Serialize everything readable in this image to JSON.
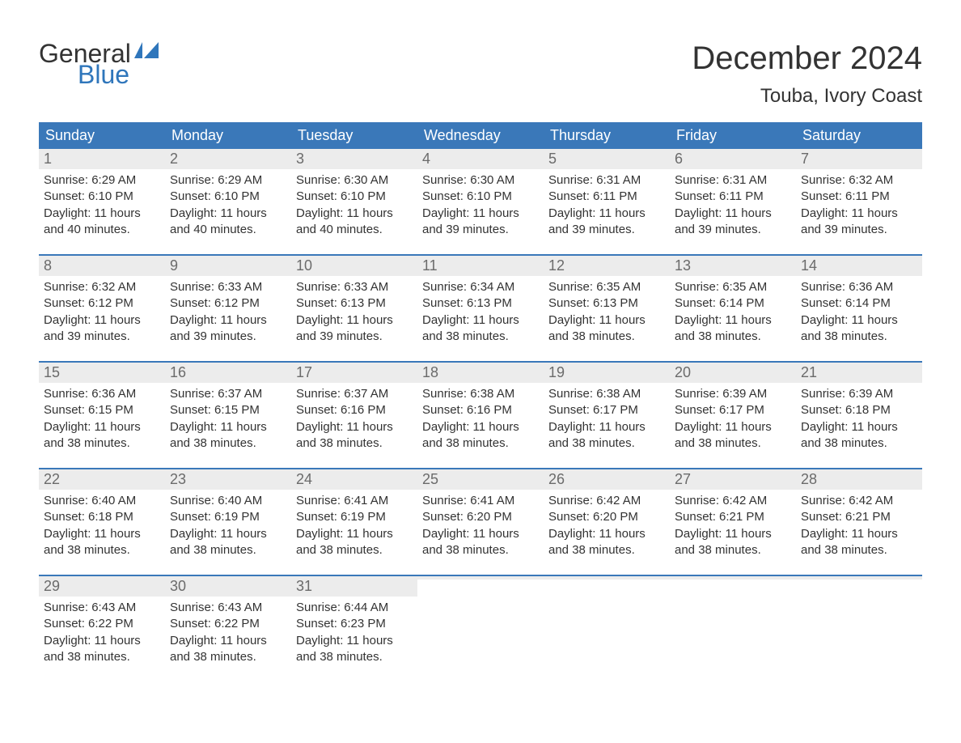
{
  "logo": {
    "text_general": "General",
    "text_blue": "Blue",
    "flag_color": "#2f76bb"
  },
  "title": "December 2024",
  "location": "Touba, Ivory Coast",
  "colors": {
    "header_bg": "#3a78b9",
    "header_text": "#ffffff",
    "daynum_bg": "#ececec",
    "daynum_text": "#6b6b6b",
    "body_text": "#333333",
    "week_divider": "#3a78b9",
    "page_bg": "#ffffff"
  },
  "typography": {
    "title_fontsize": 40,
    "location_fontsize": 24,
    "weekday_fontsize": 18,
    "daynum_fontsize": 18,
    "body_fontsize": 15
  },
  "weekdays": [
    "Sunday",
    "Monday",
    "Tuesday",
    "Wednesday",
    "Thursday",
    "Friday",
    "Saturday"
  ],
  "labels": {
    "sunrise": "Sunrise: ",
    "sunset": "Sunset: ",
    "daylight": "Daylight: "
  },
  "days": [
    {
      "n": 1,
      "sunrise": "6:29 AM",
      "sunset": "6:10 PM",
      "daylight": "11 hours and 40 minutes."
    },
    {
      "n": 2,
      "sunrise": "6:29 AM",
      "sunset": "6:10 PM",
      "daylight": "11 hours and 40 minutes."
    },
    {
      "n": 3,
      "sunrise": "6:30 AM",
      "sunset": "6:10 PM",
      "daylight": "11 hours and 40 minutes."
    },
    {
      "n": 4,
      "sunrise": "6:30 AM",
      "sunset": "6:10 PM",
      "daylight": "11 hours and 39 minutes."
    },
    {
      "n": 5,
      "sunrise": "6:31 AM",
      "sunset": "6:11 PM",
      "daylight": "11 hours and 39 minutes."
    },
    {
      "n": 6,
      "sunrise": "6:31 AM",
      "sunset": "6:11 PM",
      "daylight": "11 hours and 39 minutes."
    },
    {
      "n": 7,
      "sunrise": "6:32 AM",
      "sunset": "6:11 PM",
      "daylight": "11 hours and 39 minutes."
    },
    {
      "n": 8,
      "sunrise": "6:32 AM",
      "sunset": "6:12 PM",
      "daylight": "11 hours and 39 minutes."
    },
    {
      "n": 9,
      "sunrise": "6:33 AM",
      "sunset": "6:12 PM",
      "daylight": "11 hours and 39 minutes."
    },
    {
      "n": 10,
      "sunrise": "6:33 AM",
      "sunset": "6:13 PM",
      "daylight": "11 hours and 39 minutes."
    },
    {
      "n": 11,
      "sunrise": "6:34 AM",
      "sunset": "6:13 PM",
      "daylight": "11 hours and 38 minutes."
    },
    {
      "n": 12,
      "sunrise": "6:35 AM",
      "sunset": "6:13 PM",
      "daylight": "11 hours and 38 minutes."
    },
    {
      "n": 13,
      "sunrise": "6:35 AM",
      "sunset": "6:14 PM",
      "daylight": "11 hours and 38 minutes."
    },
    {
      "n": 14,
      "sunrise": "6:36 AM",
      "sunset": "6:14 PM",
      "daylight": "11 hours and 38 minutes."
    },
    {
      "n": 15,
      "sunrise": "6:36 AM",
      "sunset": "6:15 PM",
      "daylight": "11 hours and 38 minutes."
    },
    {
      "n": 16,
      "sunrise": "6:37 AM",
      "sunset": "6:15 PM",
      "daylight": "11 hours and 38 minutes."
    },
    {
      "n": 17,
      "sunrise": "6:37 AM",
      "sunset": "6:16 PM",
      "daylight": "11 hours and 38 minutes."
    },
    {
      "n": 18,
      "sunrise": "6:38 AM",
      "sunset": "6:16 PM",
      "daylight": "11 hours and 38 minutes."
    },
    {
      "n": 19,
      "sunrise": "6:38 AM",
      "sunset": "6:17 PM",
      "daylight": "11 hours and 38 minutes."
    },
    {
      "n": 20,
      "sunrise": "6:39 AM",
      "sunset": "6:17 PM",
      "daylight": "11 hours and 38 minutes."
    },
    {
      "n": 21,
      "sunrise": "6:39 AM",
      "sunset": "6:18 PM",
      "daylight": "11 hours and 38 minutes."
    },
    {
      "n": 22,
      "sunrise": "6:40 AM",
      "sunset": "6:18 PM",
      "daylight": "11 hours and 38 minutes."
    },
    {
      "n": 23,
      "sunrise": "6:40 AM",
      "sunset": "6:19 PM",
      "daylight": "11 hours and 38 minutes."
    },
    {
      "n": 24,
      "sunrise": "6:41 AM",
      "sunset": "6:19 PM",
      "daylight": "11 hours and 38 minutes."
    },
    {
      "n": 25,
      "sunrise": "6:41 AM",
      "sunset": "6:20 PM",
      "daylight": "11 hours and 38 minutes."
    },
    {
      "n": 26,
      "sunrise": "6:42 AM",
      "sunset": "6:20 PM",
      "daylight": "11 hours and 38 minutes."
    },
    {
      "n": 27,
      "sunrise": "6:42 AM",
      "sunset": "6:21 PM",
      "daylight": "11 hours and 38 minutes."
    },
    {
      "n": 28,
      "sunrise": "6:42 AM",
      "sunset": "6:21 PM",
      "daylight": "11 hours and 38 minutes."
    },
    {
      "n": 29,
      "sunrise": "6:43 AM",
      "sunset": "6:22 PM",
      "daylight": "11 hours and 38 minutes."
    },
    {
      "n": 30,
      "sunrise": "6:43 AM",
      "sunset": "6:22 PM",
      "daylight": "11 hours and 38 minutes."
    },
    {
      "n": 31,
      "sunrise": "6:44 AM",
      "sunset": "6:23 PM",
      "daylight": "11 hours and 38 minutes."
    }
  ],
  "layout": {
    "first_day_column": 0,
    "trailing_empty": 4
  }
}
